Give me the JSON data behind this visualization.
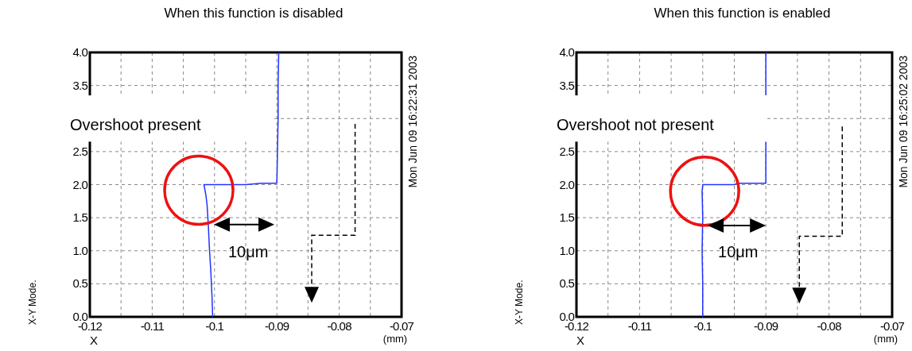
{
  "chart_data": [
    {
      "type": "line",
      "title": "When this function is disabled",
      "xlabel": "(mm)",
      "annotations": [
        "Overshoot present",
        "10μm",
        "Mon Jun 09 16:22:31 2003",
        "X-Y Mode.",
        "X"
      ],
      "series": [
        {
          "color": "#2233ff",
          "x": [
            -0.1003,
            -0.1004,
            -0.1006,
            -0.1008,
            -0.101,
            -0.1012,
            -0.1014,
            -0.1016,
            -0.1017,
            -0.1012,
            -0.095,
            -0.0925,
            -0.09,
            -0.0899,
            -0.0898,
            -0.0898,
            -0.0897
          ],
          "values": [
            0.0,
            0.3,
            0.7,
            1.0,
            1.4,
            1.7,
            1.85,
            1.95,
            2.0,
            2.0,
            2.0,
            2.02,
            2.02,
            2.5,
            3.0,
            3.5,
            4.0
          ]
        }
      ],
      "xlim": [
        -0.12,
        -0.07
      ],
      "xticks": [
        -0.12,
        -0.11,
        -0.1,
        -0.09,
        -0.08,
        -0.07
      ],
      "ylim": [
        0,
        4
      ],
      "yticks": [
        {
          "value": 0,
          "label": "0.0"
        },
        {
          "value": 0.5,
          "label": "0.5"
        },
        {
          "value": 1,
          "label": "1.0"
        },
        {
          "value": 1.5,
          "label": "1.5"
        },
        {
          "value": 2,
          "label": "2.0"
        },
        {
          "value": 2.5,
          "label": "2.5"
        },
        {
          "value": 3,
          "label": null
        },
        {
          "value": 3.5,
          "label": "3.5"
        },
        {
          "value": 4,
          "label": "4.0"
        }
      ],
      "grid": true,
      "legend": false,
      "marker": "none",
      "line_style": "solid"
    },
    {
      "type": "line",
      "title": "When this function is enabled",
      "xlabel": "(mm)",
      "annotations": [
        "Overshoot not present",
        "10μm",
        "Mon Jun 09 16:25:02 2003",
        "X-Y Mode.",
        "X"
      ],
      "series": [
        {
          "color": "#2233ff",
          "x": [
            -0.1,
            -0.1,
            -0.1001,
            -0.1,
            -0.1001,
            -0.1,
            -0.095,
            -0.0945,
            -0.09,
            -0.09,
            -0.09,
            null,
            -0.09,
            -0.09
          ],
          "values": [
            0.0,
            0.5,
            1.0,
            1.5,
            1.9,
            2.0,
            2.0,
            2.02,
            2.02,
            2.3,
            2.65,
            null,
            3.35,
            4.0
          ]
        }
      ],
      "xlim": [
        -0.12,
        -0.07
      ],
      "xticks": [
        -0.12,
        -0.11,
        -0.1,
        -0.09,
        -0.08,
        -0.07
      ],
      "ylim": [
        0,
        4
      ],
      "yticks": [
        {
          "value": 0,
          "label": "0.0"
        },
        {
          "value": 0.5,
          "label": "0.5"
        },
        {
          "value": 1,
          "label": "1.0"
        },
        {
          "value": 1.5,
          "label": "1.5"
        },
        {
          "value": 2,
          "label": "2.0"
        },
        {
          "value": 2.5,
          "label": "2.5"
        },
        {
          "value": 3,
          "label": null
        },
        {
          "value": 3.5,
          "label": "3.5"
        },
        {
          "value": 4,
          "label": "4.0"
        }
      ],
      "grid": true,
      "legend": false,
      "marker": "none",
      "line_style": "solid"
    }
  ]
}
